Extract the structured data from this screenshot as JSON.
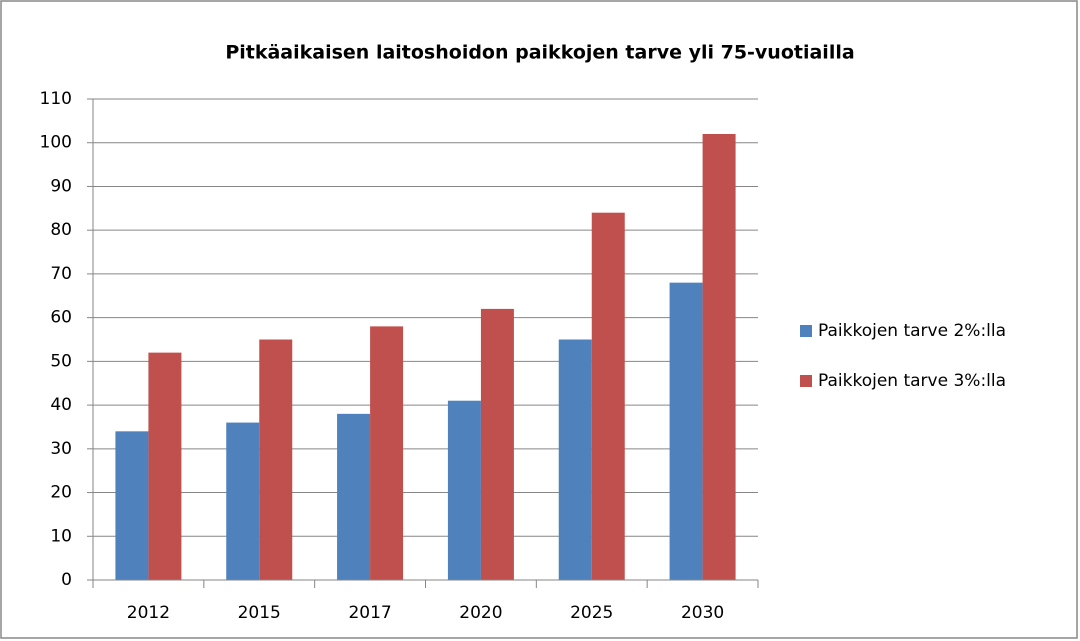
{
  "chart_data": {
    "type": "bar",
    "title": "Pitkäaikaisen laitoshoidon paikkojen tarve yli 75-vuotiailla",
    "categories": [
      "2012",
      "2015",
      "2017",
      "2020",
      "2025",
      "2030"
    ],
    "series": [
      {
        "name": "Paikkojen tarve 2%:lla",
        "color": "#4f81bd",
        "values": [
          34,
          36,
          38,
          41,
          55,
          68
        ]
      },
      {
        "name": "Paikkojen tarve 3%:lla",
        "color": "#c0504d",
        "values": [
          52,
          55,
          58,
          62,
          84,
          102
        ]
      }
    ],
    "ylim": [
      0,
      110
    ],
    "yticks": [
      0,
      10,
      20,
      30,
      40,
      50,
      60,
      70,
      80,
      90,
      100,
      110
    ],
    "grid": true,
    "legend": "right"
  }
}
